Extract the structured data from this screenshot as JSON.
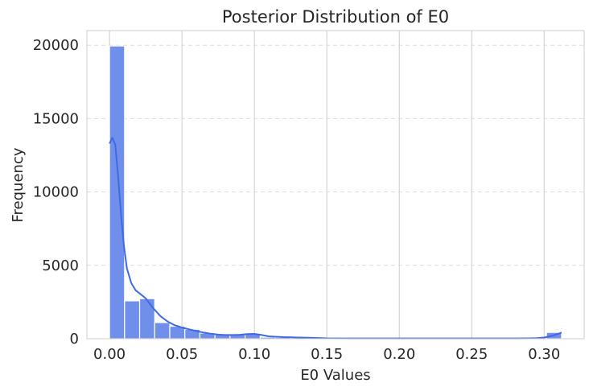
{
  "chart_data": {
    "type": "bar",
    "subtype": "histogram",
    "title": "Posterior Distribution of E0",
    "xlabel": "E0 Values",
    "ylabel": "Frequency",
    "xlim": [
      -0.0156,
      0.3276
    ],
    "ylim": [
      0,
      21000
    ],
    "xticks": [
      "0.00",
      "0.05",
      "0.10",
      "0.15",
      "0.20",
      "0.25",
      "0.30"
    ],
    "yticks": [
      "0",
      "5000",
      "10000",
      "15000",
      "20000"
    ],
    "bin_width": 0.0104,
    "bins": [
      {
        "x0": 0.0,
        "x1": 0.0104,
        "count": 19950
      },
      {
        "x0": 0.0104,
        "x1": 0.0208,
        "count": 2580
      },
      {
        "x0": 0.0208,
        "x1": 0.0312,
        "count": 2730
      },
      {
        "x0": 0.0312,
        "x1": 0.0416,
        "count": 1100
      },
      {
        "x0": 0.0416,
        "x1": 0.052,
        "count": 850
      },
      {
        "x0": 0.052,
        "x1": 0.0624,
        "count": 640
      },
      {
        "x0": 0.0624,
        "x1": 0.0728,
        "count": 390
      },
      {
        "x0": 0.0728,
        "x1": 0.0832,
        "count": 300
      },
      {
        "x0": 0.0832,
        "x1": 0.0936,
        "count": 280
      },
      {
        "x0": 0.0936,
        "x1": 0.104,
        "count": 330
      },
      {
        "x0": 0.104,
        "x1": 0.1144,
        "count": 100
      },
      {
        "x0": 0.1144,
        "x1": 0.1248,
        "count": 90
      },
      {
        "x0": 0.1248,
        "x1": 0.1352,
        "count": 60
      },
      {
        "x0": 0.1352,
        "x1": 0.1456,
        "count": 30
      },
      {
        "x0": 0.1456,
        "x1": 0.156,
        "count": 15
      },
      {
        "x0": 0.156,
        "x1": 0.1664,
        "count": 10
      },
      {
        "x0": 0.1664,
        "x1": 0.1768,
        "count": 8
      },
      {
        "x0": 0.1768,
        "x1": 0.1872,
        "count": 6
      },
      {
        "x0": 0.1872,
        "x1": 0.1976,
        "count": 5
      },
      {
        "x0": 0.1976,
        "x1": 0.208,
        "count": 4
      },
      {
        "x0": 0.208,
        "x1": 0.2184,
        "count": 4
      },
      {
        "x0": 0.2184,
        "x1": 0.2288,
        "count": 3
      },
      {
        "x0": 0.2288,
        "x1": 0.2392,
        "count": 3
      },
      {
        "x0": 0.2392,
        "x1": 0.2496,
        "count": 3
      },
      {
        "x0": 0.2496,
        "x1": 0.26,
        "count": 3
      },
      {
        "x0": 0.26,
        "x1": 0.2704,
        "count": 3
      },
      {
        "x0": 0.2704,
        "x1": 0.2808,
        "count": 3
      },
      {
        "x0": 0.2808,
        "x1": 0.2912,
        "count": 4
      },
      {
        "x0": 0.2912,
        "x1": 0.3016,
        "count": 5
      },
      {
        "x0": 0.3016,
        "x1": 0.312,
        "count": 430
      }
    ],
    "kde": {
      "x": [
        0.0,
        0.002,
        0.004,
        0.006,
        0.008,
        0.01,
        0.012,
        0.015,
        0.018,
        0.02,
        0.025,
        0.03,
        0.035,
        0.04,
        0.045,
        0.05,
        0.055,
        0.06,
        0.065,
        0.07,
        0.075,
        0.08,
        0.085,
        0.09,
        0.095,
        0.1,
        0.105,
        0.11,
        0.12,
        0.13,
        0.14,
        0.15,
        0.17,
        0.2,
        0.25,
        0.28,
        0.29,
        0.295,
        0.3,
        0.305,
        0.31,
        0.312
      ],
      "y": [
        13300,
        13700,
        13200,
        11000,
        8400,
        6300,
        4800,
        3800,
        3300,
        3150,
        2750,
        2100,
        1550,
        1180,
        920,
        760,
        640,
        520,
        420,
        340,
        280,
        250,
        250,
        270,
        310,
        330,
        250,
        160,
        110,
        80,
        60,
        30,
        20,
        20,
        20,
        20,
        25,
        40,
        80,
        180,
        340,
        420
      ]
    },
    "colors": {
      "bar_fill": "#6f8fea",
      "bar_edge": "#ffffff",
      "kde_line": "#4169e1",
      "grid": "#cccccc",
      "text": "#262626"
    },
    "grid": {
      "vertical": true,
      "horizontal": true,
      "horizontal_style": "dashed"
    },
    "legend": false
  }
}
